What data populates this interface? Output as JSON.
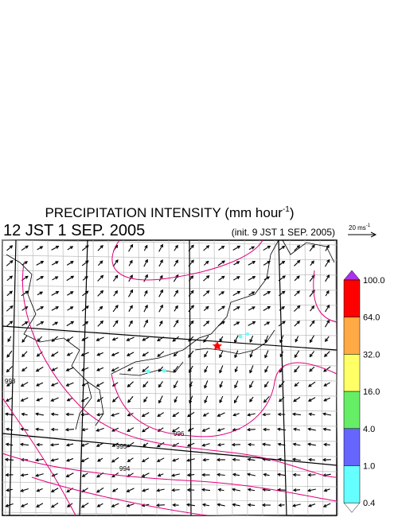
{
  "header": {
    "title": {
      "text": "PRECIPITATION INTENSITY (mm hour",
      "superscript": "-1",
      "suffix": ")"
    },
    "valid_time": "12 JST 1 SEP. 2005",
    "init_time": "(init. 9 JST 1 SEP. 2005)"
  },
  "wind_scale": {
    "text": "20 ms",
    "superscript": "-1"
  },
  "colorbar": {
    "ticks": [
      {
        "value": 100,
        "label": "100.0"
      },
      {
        "value": 64,
        "label": "64.0"
      },
      {
        "value": 32,
        "label": "32.0"
      },
      {
        "value": 16,
        "label": "16.0"
      },
      {
        "value": 4,
        "label": "4.0"
      },
      {
        "value": 1,
        "label": "1.0"
      },
      {
        "value": 0.4,
        "label": "0.4"
      }
    ],
    "colors": [
      "#ff0000",
      "#ffaa44",
      "#ffff66",
      "#66ee66",
      "#6666ff",
      "#66ffff"
    ],
    "over_color": "#aa33ee",
    "under_color": "#ffffff"
  },
  "isobar_labels": [
    "993",
    "996",
    "995",
    "994"
  ]
}
